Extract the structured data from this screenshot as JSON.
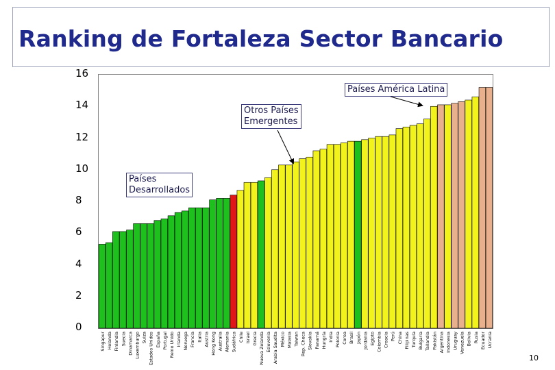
{
  "title": "Ranking de Fortaleza Sector Bancario",
  "page_number": "10",
  "colors": {
    "title": "#1f2a8c",
    "developed": "#1ec01e",
    "emerging": "#f2f21c",
    "latin_america": "#e8b08c",
    "highlight": "#e01818"
  },
  "callouts": {
    "developed": "Países\nDesarrollados",
    "emerging": "Otros Países\nEmergentes",
    "latam": "Países América Latina"
  },
  "chart_data": {
    "type": "bar",
    "title": "Ranking de Fortaleza Sector Bancario",
    "xlabel": "",
    "ylabel": "",
    "ylim": [
      0,
      16
    ],
    "yticks": [
      "0",
      "2",
      "4",
      "6",
      "8",
      "10",
      "12",
      "14",
      "16"
    ],
    "categories": [
      "Singapur",
      "Holanda",
      "Finlandia",
      "Suecia",
      "Dinamarca",
      "Luxemburgo",
      "Suiza",
      "Estados Unidos",
      "España",
      "Portugal",
      "Reino Unido",
      "Irlanda",
      "Noruega",
      "Francia",
      "Italia",
      "Austria",
      "Hong Kong",
      "Australia",
      "Alemania",
      "Sudáfrica",
      "Chile",
      "Israel",
      "Grecia",
      "Nueva Zelanda",
      "Eslovenia",
      "Arabia Saudita",
      "México",
      "Malasia",
      "Taiwan",
      "Rep. Checa",
      "Slovakia",
      "Panamá",
      "Hungría",
      "India",
      "Polonia",
      "Corea",
      "Brasil",
      "Japón",
      "Jordania",
      "Egipto",
      "Colombia",
      "Croacia",
      "Perú",
      "China",
      "Filipinas",
      "Turquía",
      "Bulgaria",
      "Tailandia",
      "Pakistán",
      "Argentina",
      "Indonesia",
      "Uruguay",
      "Venezuela",
      "Bolivia",
      "Rusia",
      "Ecuador",
      "Ucrania"
    ],
    "values": [
      5.3,
      5.4,
      6.1,
      6.1,
      6.2,
      6.6,
      6.6,
      6.6,
      6.8,
      6.9,
      7.1,
      7.3,
      7.4,
      7.6,
      7.6,
      7.6,
      8.1,
      8.2,
      8.2,
      8.4,
      8.7,
      9.2,
      9.2,
      9.3,
      9.5,
      10.0,
      10.3,
      10.3,
      10.5,
      10.7,
      10.8,
      11.2,
      11.3,
      11.6,
      11.6,
      11.7,
      11.8,
      11.8,
      11.9,
      12.0,
      12.1,
      12.1,
      12.2,
      12.6,
      12.7,
      12.8,
      12.9,
      13.2,
      14.0,
      14.1,
      14.1,
      14.2,
      14.3,
      14.4,
      14.6,
      15.2,
      15.2
    ],
    "groups": [
      "D",
      "D",
      "D",
      "D",
      "D",
      "D",
      "D",
      "D",
      "D",
      "D",
      "D",
      "D",
      "D",
      "D",
      "D",
      "D",
      "D",
      "D",
      "D",
      "H",
      "E",
      "E",
      "E",
      "D",
      "E",
      "E",
      "E",
      "E",
      "E",
      "E",
      "E",
      "E",
      "E",
      "E",
      "E",
      "E",
      "E",
      "D",
      "E",
      "E",
      "E",
      "E",
      "E",
      "E",
      "E",
      "E",
      "E",
      "E",
      "E",
      "L",
      "E",
      "L",
      "L",
      "E",
      "E",
      "L",
      "L"
    ],
    "series": [
      {
        "name": "Fortaleza Sector Bancario",
        "values": [
          5.3,
          5.4,
          6.1,
          6.1,
          6.2,
          6.6,
          6.6,
          6.6,
          6.8,
          6.9,
          7.1,
          7.3,
          7.4,
          7.6,
          7.6,
          7.6,
          8.1,
          8.2,
          8.2,
          8.4,
          8.7,
          9.2,
          9.2,
          9.3,
          9.5,
          10.0,
          10.3,
          10.3,
          10.5,
          10.7,
          10.8,
          11.2,
          11.3,
          11.6,
          11.6,
          11.7,
          11.8,
          11.8,
          11.9,
          12.0,
          12.1,
          12.1,
          12.2,
          12.6,
          12.7,
          12.8,
          12.9,
          13.2,
          14.0,
          14.1,
          14.1,
          14.2,
          14.3,
          14.4,
          14.6,
          15.2,
          15.2
        ]
      }
    ]
  }
}
